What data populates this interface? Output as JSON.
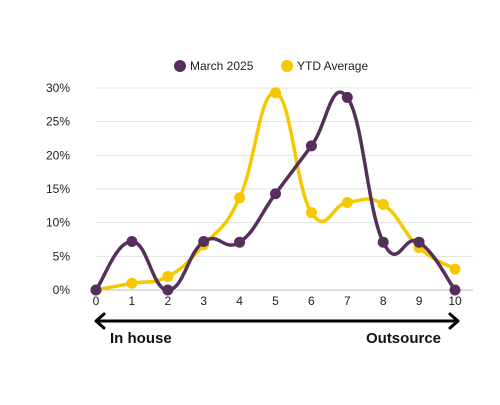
{
  "chart_data": {
    "type": "line",
    "x": [
      0,
      1,
      2,
      3,
      4,
      5,
      6,
      7,
      8,
      9,
      10
    ],
    "xlim": [
      0,
      10
    ],
    "ylim": [
      0,
      30
    ],
    "ytick_values": [
      0,
      5,
      10,
      15,
      20,
      25,
      30
    ],
    "ytick_labels": [
      "0%",
      "5%",
      "10%",
      "15%",
      "20%",
      "25%",
      "30%"
    ],
    "xtick_labels": [
      "0",
      "1",
      "2",
      "3",
      "4",
      "5",
      "6",
      "7",
      "8",
      "9",
      "10"
    ],
    "grid": "horizontal",
    "legend_position": "top-center",
    "series": [
      {
        "name": "March 2025",
        "color": "#55305a",
        "values": [
          0,
          7.2,
          0,
          7.2,
          7.1,
          14.3,
          21.4,
          28.6,
          7.1,
          7.1,
          0
        ]
      },
      {
        "name": "YTD Average",
        "color": "#f5c800",
        "values": [
          0,
          1.0,
          2.0,
          6.7,
          13.7,
          29.3,
          11.5,
          13.0,
          12.7,
          6.3,
          3.1
        ]
      }
    ],
    "annotations": {
      "left": "In house",
      "right": "Outsource"
    }
  }
}
